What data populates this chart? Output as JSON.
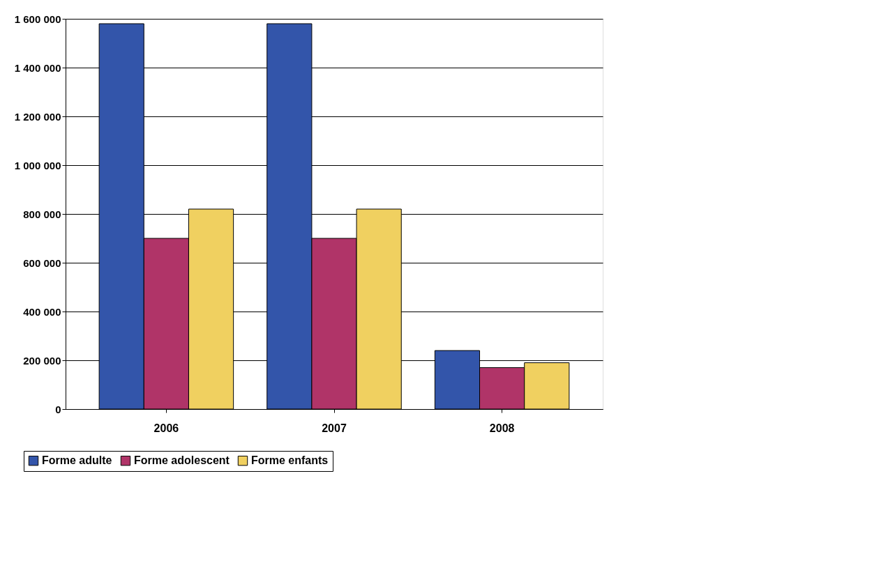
{
  "chart_data": {
    "type": "bar",
    "categories": [
      "2006",
      "2007",
      "2008"
    ],
    "series": [
      {
        "name": "Forme adulte",
        "color": "#3355aa",
        "values": [
          1580000,
          1580000,
          240000
        ]
      },
      {
        "name": "Forme adolescent",
        "color": "#b03468",
        "values": [
          700000,
          700000,
          170000
        ]
      },
      {
        "name": "Forme enfants",
        "color": "#f0d060",
        "values": [
          820000,
          820000,
          190000
        ]
      }
    ],
    "ylim": [
      0,
      1600000
    ],
    "yticks": [
      {
        "value": 0,
        "label": "0"
      },
      {
        "value": 200000,
        "label": "200 000"
      },
      {
        "value": 400000,
        "label": "400 000"
      },
      {
        "value": 600000,
        "label": "600 000"
      },
      {
        "value": 800000,
        "label": "800 000"
      },
      {
        "value": 1000000,
        "label": "1 000 000"
      },
      {
        "value": 1200000,
        "label": "1 200 000"
      },
      {
        "value": 1400000,
        "label": "1 400 000"
      },
      {
        "value": 1600000,
        "label": "1 600 000"
      }
    ],
    "grid": "y",
    "legend": "bottom left"
  }
}
